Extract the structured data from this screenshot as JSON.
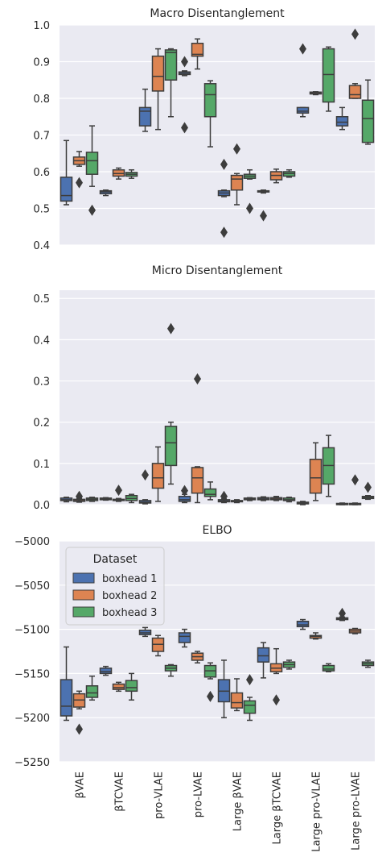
{
  "figure": {
    "categories": [
      "βVAE",
      "βTCVAE",
      "pro-VLAE",
      "pro-LVAE",
      "Large βVAE",
      "Large βTCVAE",
      "Large pro-VLAE",
      "Large pro-LVAE"
    ],
    "colors": {
      "background": "#eaeaf2",
      "grid": "#ffffff",
      "whisker": "#3d3d3d"
    }
  },
  "legend": {
    "title": "Dataset",
    "entries": [
      {
        "label": "boxhead 1",
        "color": "#4c72b0"
      },
      {
        "label": "boxhead 2",
        "color": "#dd8452"
      },
      {
        "label": "boxhead 3",
        "color": "#55a868"
      }
    ]
  },
  "chart_data": [
    {
      "type": "box",
      "title": "Macro Disentanglement",
      "ylim": [
        0.4,
        1.0
      ],
      "yticks": [
        0.4,
        0.5,
        0.6,
        0.7,
        0.8,
        0.9,
        1.0
      ],
      "ytick_labels": [
        "0.4",
        "0.5",
        "0.6",
        "0.7",
        "0.8",
        "0.9",
        "1.0"
      ],
      "grid": true,
      "series": [
        {
          "name": "boxhead 1",
          "boxes": [
            {
              "wl": 0.51,
              "q1": 0.52,
              "med": 0.535,
              "q3": 0.585,
              "wh": 0.685,
              "out": []
            },
            {
              "wl": 0.535,
              "q1": 0.54,
              "med": 0.545,
              "q3": 0.548,
              "wh": 0.55,
              "out": []
            },
            {
              "wl": 0.71,
              "q1": 0.725,
              "med": 0.765,
              "q3": 0.775,
              "wh": 0.825,
              "out": []
            },
            {
              "wl": 0.862,
              "q1": 0.865,
              "med": 0.868,
              "q3": 0.872,
              "wh": 0.875,
              "out": [
                0.9,
                0.72
              ]
            },
            {
              "wl": 0.532,
              "q1": 0.535,
              "med": 0.542,
              "q3": 0.548,
              "wh": 0.55,
              "out": [
                0.62,
                0.435
              ]
            },
            {
              "wl": 0.542,
              "q1": 0.545,
              "med": 0.546,
              "q3": 0.548,
              "wh": 0.55,
              "out": [
                0.48
              ]
            },
            {
              "wl": 0.75,
              "q1": 0.76,
              "med": 0.765,
              "q3": 0.775,
              "wh": 0.775,
              "out": [
                0.935
              ]
            },
            {
              "wl": 0.715,
              "q1": 0.725,
              "med": 0.735,
              "q3": 0.75,
              "wh": 0.775,
              "out": []
            }
          ]
        },
        {
          "name": "boxhead 2",
          "boxes": [
            {
              "wl": 0.615,
              "q1": 0.62,
              "med": 0.63,
              "q3": 0.64,
              "wh": 0.655,
              "out": [
                0.57
              ]
            },
            {
              "wl": 0.58,
              "q1": 0.588,
              "med": 0.595,
              "q3": 0.605,
              "wh": 0.61,
              "out": []
            },
            {
              "wl": 0.715,
              "q1": 0.82,
              "med": 0.86,
              "q3": 0.915,
              "wh": 0.935,
              "out": []
            },
            {
              "wl": 0.88,
              "q1": 0.915,
              "med": 0.92,
              "q3": 0.95,
              "wh": 0.962,
              "out": []
            },
            {
              "wl": 0.51,
              "q1": 0.55,
              "med": 0.58,
              "q3": 0.59,
              "wh": 0.595,
              "out": [
                0.662
              ]
            },
            {
              "wl": 0.57,
              "q1": 0.578,
              "med": 0.59,
              "q3": 0.6,
              "wh": 0.607,
              "out": []
            },
            {
              "wl": 0.81,
              "q1": 0.812,
              "med": 0.815,
              "q3": 0.817,
              "wh": 0.818,
              "out": []
            },
            {
              "wl": 0.8,
              "q1": 0.8,
              "med": 0.81,
              "q3": 0.835,
              "wh": 0.84,
              "out": [
                0.975
              ]
            }
          ]
        },
        {
          "name": "boxhead 3",
          "boxes": [
            {
              "wl": 0.56,
              "q1": 0.593,
              "med": 0.63,
              "q3": 0.653,
              "wh": 0.725,
              "out": [
                0.495
              ]
            },
            {
              "wl": 0.582,
              "q1": 0.588,
              "med": 0.593,
              "q3": 0.598,
              "wh": 0.605,
              "out": []
            },
            {
              "wl": 0.75,
              "q1": 0.85,
              "med": 0.925,
              "q3": 0.932,
              "wh": 0.935,
              "out": []
            },
            {
              "wl": 0.668,
              "q1": 0.75,
              "med": 0.81,
              "q3": 0.84,
              "wh": 0.848,
              "out": []
            },
            {
              "wl": 0.58,
              "q1": 0.582,
              "med": 0.588,
              "q3": 0.593,
              "wh": 0.605,
              "out": [
                0.5
              ]
            },
            {
              "wl": 0.585,
              "q1": 0.588,
              "med": 0.595,
              "q3": 0.6,
              "wh": 0.605,
              "out": []
            },
            {
              "wl": 0.765,
              "q1": 0.79,
              "med": 0.865,
              "q3": 0.935,
              "wh": 0.94,
              "out": []
            },
            {
              "wl": 0.675,
              "q1": 0.68,
              "med": 0.745,
              "q3": 0.795,
              "wh": 0.85,
              "out": []
            }
          ]
        }
      ]
    },
    {
      "type": "box",
      "title": "Micro Disentanglement",
      "ylim": [
        0.0,
        0.52
      ],
      "yticks": [
        0.0,
        0.1,
        0.2,
        0.3,
        0.4,
        0.5
      ],
      "ytick_labels": [
        "0.0",
        "0.1",
        "0.2",
        "0.3",
        "0.4",
        "0.5"
      ],
      "grid": true,
      "series": [
        {
          "name": "boxhead 1",
          "boxes": [
            {
              "wl": 0.007,
              "q1": 0.01,
              "med": 0.012,
              "q3": 0.016,
              "wh": 0.018,
              "out": []
            },
            {
              "wl": 0.011,
              "q1": 0.012,
              "med": 0.014,
              "q3": 0.016,
              "wh": 0.017,
              "out": []
            },
            {
              "wl": 0.002,
              "q1": 0.004,
              "med": 0.006,
              "q3": 0.01,
              "wh": 0.012,
              "out": [
                0.072
              ]
            },
            {
              "wl": 0.005,
              "q1": 0.008,
              "med": 0.012,
              "q3": 0.02,
              "wh": 0.025,
              "out": [
                0.034
              ]
            },
            {
              "wl": 0.005,
              "q1": 0.007,
              "med": 0.009,
              "q3": 0.012,
              "wh": 0.014,
              "out": [
                0.02
              ]
            },
            {
              "wl": 0.01,
              "q1": 0.012,
              "med": 0.014,
              "q3": 0.017,
              "wh": 0.019,
              "out": []
            },
            {
              "wl": 0.0,
              "q1": 0.002,
              "med": 0.004,
              "q3": 0.006,
              "wh": 0.008,
              "out": []
            },
            {
              "wl": 0.0,
              "q1": 0.001,
              "med": 0.002,
              "q3": 0.003,
              "wh": 0.004,
              "out": []
            }
          ]
        },
        {
          "name": "boxhead 2",
          "boxes": [
            {
              "wl": 0.006,
              "q1": 0.008,
              "med": 0.01,
              "q3": 0.013,
              "wh": 0.015,
              "out": [
                0.02
              ]
            },
            {
              "wl": 0.008,
              "q1": 0.01,
              "med": 0.011,
              "q3": 0.013,
              "wh": 0.015,
              "out": [
                0.035
              ]
            },
            {
              "wl": 0.008,
              "q1": 0.04,
              "med": 0.065,
              "q3": 0.1,
              "wh": 0.14,
              "out": []
            },
            {
              "wl": 0.005,
              "q1": 0.028,
              "med": 0.065,
              "q3": 0.09,
              "wh": 0.092,
              "out": [
                0.305
              ]
            },
            {
              "wl": 0.005,
              "q1": 0.007,
              "med": 0.008,
              "q3": 0.01,
              "wh": 0.012,
              "out": []
            },
            {
              "wl": 0.01,
              "q1": 0.012,
              "med": 0.014,
              "q3": 0.017,
              "wh": 0.02,
              "out": []
            },
            {
              "wl": 0.01,
              "q1": 0.028,
              "med": 0.065,
              "q3": 0.11,
              "wh": 0.15,
              "out": []
            },
            {
              "wl": 0.0,
              "q1": 0.001,
              "med": 0.002,
              "q3": 0.003,
              "wh": 0.004,
              "out": [
                0.06
              ]
            }
          ]
        },
        {
          "name": "boxhead 3",
          "boxes": [
            {
              "wl": 0.008,
              "q1": 0.01,
              "med": 0.013,
              "q3": 0.016,
              "wh": 0.018,
              "out": []
            },
            {
              "wl": 0.005,
              "q1": 0.01,
              "med": 0.015,
              "q3": 0.022,
              "wh": 0.025,
              "out": []
            },
            {
              "wl": 0.05,
              "q1": 0.095,
              "med": 0.15,
              "q3": 0.19,
              "wh": 0.2,
              "out": [
                0.427
              ]
            },
            {
              "wl": 0.012,
              "q1": 0.02,
              "med": 0.025,
              "q3": 0.038,
              "wh": 0.055,
              "out": []
            },
            {
              "wl": 0.01,
              "q1": 0.012,
              "med": 0.014,
              "q3": 0.016,
              "wh": 0.017,
              "out": []
            },
            {
              "wl": 0.007,
              "q1": 0.01,
              "med": 0.012,
              "q3": 0.016,
              "wh": 0.018,
              "out": []
            },
            {
              "wl": 0.02,
              "q1": 0.05,
              "med": 0.095,
              "q3": 0.138,
              "wh": 0.168,
              "out": []
            },
            {
              "wl": 0.013,
              "q1": 0.015,
              "med": 0.018,
              "q3": 0.02,
              "wh": 0.022,
              "out": [
                0.042
              ]
            }
          ]
        }
      ]
    },
    {
      "type": "box",
      "title": "ELBO",
      "ylim": [
        -5250,
        -5000
      ],
      "yticks": [
        -5250,
        -5200,
        -5150,
        -5100,
        -5050,
        -5000
      ],
      "ytick_labels": [
        "−5250",
        "−5200",
        "−5150",
        "−5100",
        "−5050",
        "−5000"
      ],
      "grid": true,
      "series": [
        {
          "name": "boxhead 1",
          "boxes": [
            {
              "wl": -5203,
              "q1": -5198,
              "med": -5187,
              "q3": -5157,
              "wh": -5120,
              "out": []
            },
            {
              "wl": -5152,
              "q1": -5150,
              "med": -5148,
              "q3": -5144,
              "wh": -5142,
              "out": []
            },
            {
              "wl": -5108,
              "q1": -5106,
              "med": -5104,
              "q3": -5101,
              "wh": -5098,
              "out": []
            },
            {
              "wl": -5120,
              "q1": -5115,
              "med": -5108,
              "q3": -5104,
              "wh": -5100,
              "out": []
            },
            {
              "wl": -5200,
              "q1": -5182,
              "med": -5170,
              "q3": -5157,
              "wh": -5135,
              "out": []
            },
            {
              "wl": -5155,
              "q1": -5137,
              "med": -5130,
              "q3": -5121,
              "wh": -5115,
              "out": []
            },
            {
              "wl": -5100,
              "q1": -5097,
              "med": -5095,
              "q3": -5091,
              "wh": -5089,
              "out": []
            },
            {
              "wl": -5090,
              "q1": -5089,
              "med": -5088,
              "q3": -5087,
              "wh": -5086,
              "out": [
                -5082
              ]
            }
          ]
        },
        {
          "name": "boxhead 2",
          "boxes": [
            {
              "wl": -5190,
              "q1": -5188,
              "med": -5180,
              "q3": -5173,
              "wh": -5170,
              "out": [
                -5213
              ]
            },
            {
              "wl": -5170,
              "q1": -5168,
              "med": -5166,
              "q3": -5162,
              "wh": -5160,
              "out": []
            },
            {
              "wl": -5130,
              "q1": -5125,
              "med": -5117,
              "q3": -5110,
              "wh": -5107,
              "out": []
            },
            {
              "wl": -5138,
              "q1": -5135,
              "med": -5131,
              "q3": -5127,
              "wh": -5125,
              "out": []
            },
            {
              "wl": -5192,
              "q1": -5189,
              "med": -5183,
              "q3": -5172,
              "wh": -5156,
              "out": []
            },
            {
              "wl": -5150,
              "q1": -5148,
              "med": -5144,
              "q3": -5139,
              "wh": -5122,
              "out": [
                -5180
              ]
            },
            {
              "wl": -5111,
              "q1": -5110,
              "med": -5108,
              "q3": -5107,
              "wh": -5104,
              "out": []
            },
            {
              "wl": -5105,
              "q1": -5104,
              "med": -5102,
              "q3": -5100,
              "wh": -5099,
              "out": []
            }
          ]
        },
        {
          "name": "boxhead 3",
          "boxes": [
            {
              "wl": -5180,
              "q1": -5177,
              "med": -5172,
              "q3": -5164,
              "wh": -5153,
              "out": []
            },
            {
              "wl": -5180,
              "q1": -5170,
              "med": -5166,
              "q3": -5158,
              "wh": -5150,
              "out": []
            },
            {
              "wl": -5153,
              "q1": -5147,
              "med": -5144,
              "q3": -5141,
              "wh": -5140,
              "out": []
            },
            {
              "wl": -5156,
              "q1": -5154,
              "med": -5147,
              "q3": -5141,
              "wh": -5138,
              "out": [
                -5176
              ]
            },
            {
              "wl": -5203,
              "q1": -5195,
              "med": -5186,
              "q3": -5181,
              "wh": -5177,
              "out": [
                -5157
              ]
            },
            {
              "wl": -5145,
              "q1": -5143,
              "med": -5140,
              "q3": -5137,
              "wh": -5135,
              "out": []
            },
            {
              "wl": -5148,
              "q1": -5147,
              "med": -5145,
              "q3": -5141,
              "wh": -5139,
              "out": []
            },
            {
              "wl": -5143,
              "q1": -5141,
              "med": -5139,
              "q3": -5137,
              "wh": -5135,
              "out": []
            }
          ]
        }
      ]
    }
  ]
}
